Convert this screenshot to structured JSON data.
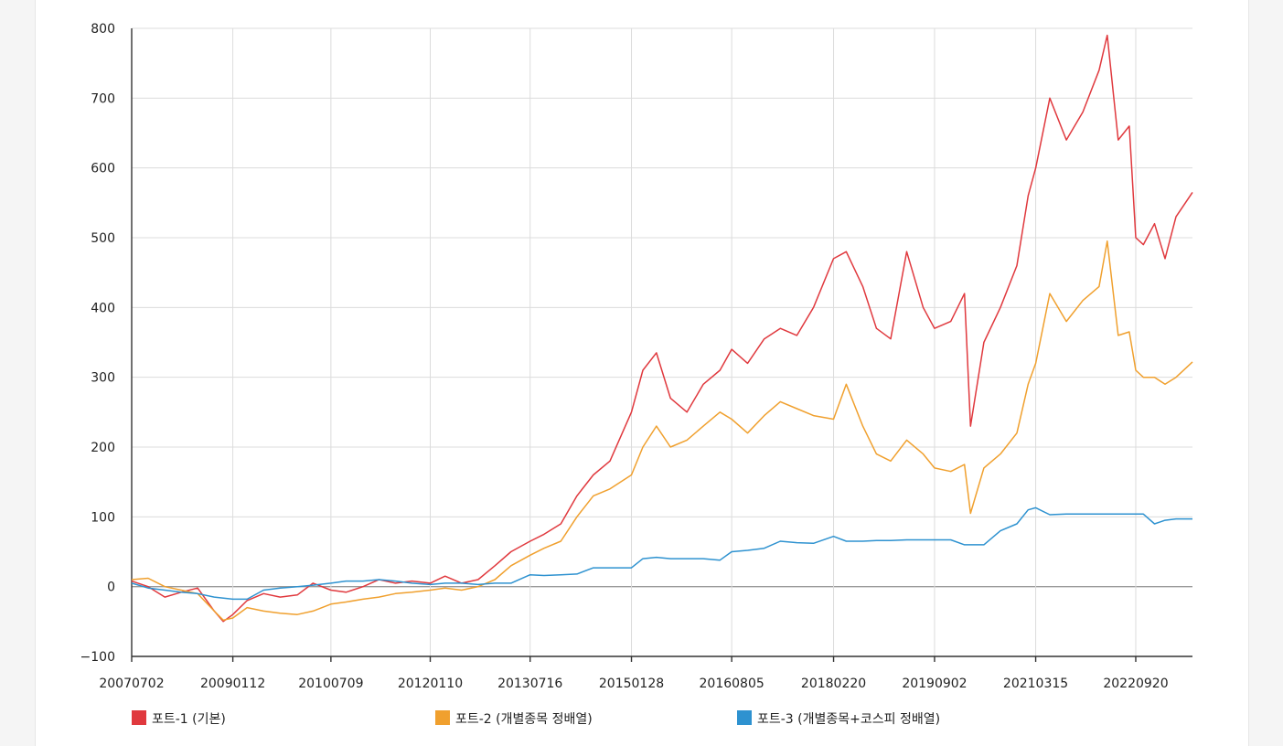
{
  "chart_data": {
    "type": "line",
    "title": "",
    "xlabel": "",
    "ylabel": "",
    "ylim": [
      -100,
      800
    ],
    "yticks": [
      -100,
      0,
      100,
      200,
      300,
      400,
      500,
      600,
      700,
      800
    ],
    "yticks_labels": [
      "−100",
      "0",
      "100",
      "200",
      "300",
      "400",
      "500",
      "600",
      "700",
      "800"
    ],
    "xlim": [
      "2007-07-02",
      "2023-07-31"
    ],
    "xticks": [
      {
        "date": "2007-07-02",
        "label": "20070702"
      },
      {
        "date": "2009-01-12",
        "label": "20090112"
      },
      {
        "date": "2010-07-09",
        "label": "20100709"
      },
      {
        "date": "2012-01-10",
        "label": "20120110"
      },
      {
        "date": "2013-07-16",
        "label": "20130716"
      },
      {
        "date": "2015-01-28",
        "label": "20150128"
      },
      {
        "date": "2016-08-05",
        "label": "20160805"
      },
      {
        "date": "2018-02-20",
        "label": "20180220"
      },
      {
        "date": "2019-09-02",
        "label": "20190902"
      },
      {
        "date": "2021-03-15",
        "label": "20210315"
      },
      {
        "date": "2022-09-20",
        "label": "20220920"
      }
    ],
    "grid": true,
    "legend_position": "bottom",
    "series": [
      {
        "name": "포트-1 (기본)",
        "color": "#e0393e",
        "points": [
          [
            "2007-07-02",
            8
          ],
          [
            "2007-10-01",
            0
          ],
          [
            "2008-01-02",
            -15
          ],
          [
            "2008-04-01",
            -8
          ],
          [
            "2008-07-01",
            -2
          ],
          [
            "2008-10-01",
            -35
          ],
          [
            "2008-11-20",
            -50
          ],
          [
            "2009-01-12",
            -40
          ],
          [
            "2009-04-01",
            -20
          ],
          [
            "2009-07-01",
            -10
          ],
          [
            "2009-10-01",
            -15
          ],
          [
            "2010-01-04",
            -12
          ],
          [
            "2010-04-01",
            5
          ],
          [
            "2010-07-09",
            -5
          ],
          [
            "2010-10-01",
            -8
          ],
          [
            "2011-01-03",
            0
          ],
          [
            "2011-04-01",
            10
          ],
          [
            "2011-07-01",
            5
          ],
          [
            "2011-10-01",
            8
          ],
          [
            "2012-01-10",
            5
          ],
          [
            "2012-04-01",
            15
          ],
          [
            "2012-07-01",
            5
          ],
          [
            "2012-10-01",
            10
          ],
          [
            "2013-01-02",
            30
          ],
          [
            "2013-04-01",
            50
          ],
          [
            "2013-07-16",
            65
          ],
          [
            "2013-10-01",
            75
          ],
          [
            "2014-01-02",
            90
          ],
          [
            "2014-04-01",
            130
          ],
          [
            "2014-07-01",
            160
          ],
          [
            "2014-10-01",
            180
          ],
          [
            "2015-01-28",
            250
          ],
          [
            "2015-04-01",
            310
          ],
          [
            "2015-06-15",
            335
          ],
          [
            "2015-09-01",
            270
          ],
          [
            "2015-12-01",
            250
          ],
          [
            "2016-03-01",
            290
          ],
          [
            "2016-06-01",
            310
          ],
          [
            "2016-08-05",
            340
          ],
          [
            "2016-11-01",
            320
          ],
          [
            "2017-02-01",
            355
          ],
          [
            "2017-05-01",
            370
          ],
          [
            "2017-08-01",
            360
          ],
          [
            "2017-11-01",
            400
          ],
          [
            "2018-02-20",
            470
          ],
          [
            "2018-05-01",
            480
          ],
          [
            "2018-08-01",
            430
          ],
          [
            "2018-10-15",
            370
          ],
          [
            "2019-01-02",
            355
          ],
          [
            "2019-04-01",
            480
          ],
          [
            "2019-07-01",
            400
          ],
          [
            "2019-09-02",
            370
          ],
          [
            "2019-12-01",
            380
          ],
          [
            "2020-02-15",
            420
          ],
          [
            "2020-03-19",
            230
          ],
          [
            "2020-06-01",
            350
          ],
          [
            "2020-09-01",
            400
          ],
          [
            "2020-12-01",
            460
          ],
          [
            "2021-02-01",
            560
          ],
          [
            "2021-03-15",
            600
          ],
          [
            "2021-06-01",
            700
          ],
          [
            "2021-09-01",
            640
          ],
          [
            "2021-12-01",
            680
          ],
          [
            "2022-03-01",
            740
          ],
          [
            "2022-04-15",
            790
          ],
          [
            "2022-06-15",
            640
          ],
          [
            "2022-08-15",
            660
          ],
          [
            "2022-09-20",
            500
          ],
          [
            "2022-11-01",
            490
          ],
          [
            "2023-01-02",
            520
          ],
          [
            "2023-03-01",
            470
          ],
          [
            "2023-05-01",
            530
          ],
          [
            "2023-07-31",
            565
          ]
        ]
      },
      {
        "name": "포트-2 (개별종목 정배열)",
        "color": "#f0a02e",
        "points": [
          [
            "2007-07-02",
            10
          ],
          [
            "2007-10-01",
            12
          ],
          [
            "2008-01-02",
            0
          ],
          [
            "2008-04-01",
            -5
          ],
          [
            "2008-07-01",
            -10
          ],
          [
            "2008-10-01",
            -35
          ],
          [
            "2008-11-20",
            -48
          ],
          [
            "2009-01-12",
            -45
          ],
          [
            "2009-04-01",
            -30
          ],
          [
            "2009-07-01",
            -35
          ],
          [
            "2009-10-01",
            -38
          ],
          [
            "2010-01-04",
            -40
          ],
          [
            "2010-04-01",
            -35
          ],
          [
            "2010-07-09",
            -25
          ],
          [
            "2010-10-01",
            -22
          ],
          [
            "2011-01-03",
            -18
          ],
          [
            "2011-04-01",
            -15
          ],
          [
            "2011-07-01",
            -10
          ],
          [
            "2011-10-01",
            -8
          ],
          [
            "2012-01-10",
            -5
          ],
          [
            "2012-04-01",
            -2
          ],
          [
            "2012-07-01",
            -5
          ],
          [
            "2012-10-01",
            0
          ],
          [
            "2013-01-02",
            10
          ],
          [
            "2013-04-01",
            30
          ],
          [
            "2013-07-16",
            45
          ],
          [
            "2013-10-01",
            55
          ],
          [
            "2014-01-02",
            65
          ],
          [
            "2014-04-01",
            100
          ],
          [
            "2014-07-01",
            130
          ],
          [
            "2014-10-01",
            140
          ],
          [
            "2015-01-28",
            160
          ],
          [
            "2015-04-01",
            200
          ],
          [
            "2015-06-15",
            230
          ],
          [
            "2015-09-01",
            200
          ],
          [
            "2015-12-01",
            210
          ],
          [
            "2016-03-01",
            230
          ],
          [
            "2016-06-01",
            250
          ],
          [
            "2016-08-05",
            240
          ],
          [
            "2016-11-01",
            220
          ],
          [
            "2017-02-01",
            245
          ],
          [
            "2017-05-01",
            265
          ],
          [
            "2017-08-01",
            255
          ],
          [
            "2017-11-01",
            245
          ],
          [
            "2018-02-20",
            240
          ],
          [
            "2018-05-01",
            290
          ],
          [
            "2018-08-01",
            230
          ],
          [
            "2018-10-15",
            190
          ],
          [
            "2019-01-02",
            180
          ],
          [
            "2019-04-01",
            210
          ],
          [
            "2019-07-01",
            190
          ],
          [
            "2019-09-02",
            170
          ],
          [
            "2019-12-01",
            165
          ],
          [
            "2020-02-15",
            175
          ],
          [
            "2020-03-19",
            105
          ],
          [
            "2020-06-01",
            170
          ],
          [
            "2020-09-01",
            190
          ],
          [
            "2020-12-01",
            220
          ],
          [
            "2021-02-01",
            290
          ],
          [
            "2021-03-15",
            320
          ],
          [
            "2021-06-01",
            420
          ],
          [
            "2021-09-01",
            380
          ],
          [
            "2021-12-01",
            410
          ],
          [
            "2022-03-01",
            430
          ],
          [
            "2022-04-15",
            495
          ],
          [
            "2022-06-15",
            360
          ],
          [
            "2022-08-15",
            365
          ],
          [
            "2022-09-20",
            310
          ],
          [
            "2022-11-01",
            300
          ],
          [
            "2023-01-02",
            300
          ],
          [
            "2023-03-01",
            290
          ],
          [
            "2023-05-01",
            300
          ],
          [
            "2023-07-31",
            322
          ]
        ]
      },
      {
        "name": "포트-3 (개별종목+코스피 정배열)",
        "color": "#2e92d0",
        "points": [
          [
            "2007-07-02",
            5
          ],
          [
            "2007-10-01",
            -2
          ],
          [
            "2008-01-02",
            -5
          ],
          [
            "2008-04-01",
            -8
          ],
          [
            "2008-07-01",
            -10
          ],
          [
            "2008-10-01",
            -15
          ],
          [
            "2009-01-12",
            -18
          ],
          [
            "2009-04-01",
            -18
          ],
          [
            "2009-07-01",
            -5
          ],
          [
            "2009-10-01",
            -2
          ],
          [
            "2010-01-04",
            0
          ],
          [
            "2010-04-01",
            2
          ],
          [
            "2010-07-09",
            5
          ],
          [
            "2010-10-01",
            8
          ],
          [
            "2011-01-03",
            8
          ],
          [
            "2011-04-01",
            10
          ],
          [
            "2011-07-01",
            8
          ],
          [
            "2011-10-01",
            5
          ],
          [
            "2012-01-10",
            3
          ],
          [
            "2012-04-01",
            5
          ],
          [
            "2012-07-01",
            5
          ],
          [
            "2012-10-01",
            3
          ],
          [
            "2013-01-02",
            5
          ],
          [
            "2013-04-01",
            5
          ],
          [
            "2013-07-16",
            17
          ],
          [
            "2013-10-01",
            16
          ],
          [
            "2014-01-02",
            17
          ],
          [
            "2014-04-01",
            18
          ],
          [
            "2014-07-01",
            27
          ],
          [
            "2014-10-01",
            27
          ],
          [
            "2015-01-28",
            27
          ],
          [
            "2015-04-01",
            40
          ],
          [
            "2015-06-15",
            42
          ],
          [
            "2015-09-01",
            40
          ],
          [
            "2015-12-01",
            40
          ],
          [
            "2016-03-01",
            40
          ],
          [
            "2016-06-01",
            38
          ],
          [
            "2016-08-05",
            50
          ],
          [
            "2016-11-01",
            52
          ],
          [
            "2017-02-01",
            55
          ],
          [
            "2017-05-01",
            65
          ],
          [
            "2017-08-01",
            63
          ],
          [
            "2017-11-01",
            62
          ],
          [
            "2018-02-20",
            72
          ],
          [
            "2018-05-01",
            65
          ],
          [
            "2018-08-01",
            65
          ],
          [
            "2018-10-15",
            66
          ],
          [
            "2019-01-02",
            66
          ],
          [
            "2019-04-01",
            67
          ],
          [
            "2019-07-01",
            67
          ],
          [
            "2019-09-02",
            67
          ],
          [
            "2019-12-01",
            67
          ],
          [
            "2020-02-15",
            60
          ],
          [
            "2020-03-19",
            60
          ],
          [
            "2020-06-01",
            60
          ],
          [
            "2020-09-01",
            80
          ],
          [
            "2020-12-01",
            90
          ],
          [
            "2021-02-01",
            110
          ],
          [
            "2021-03-15",
            113
          ],
          [
            "2021-06-01",
            103
          ],
          [
            "2021-09-01",
            104
          ],
          [
            "2021-12-01",
            104
          ],
          [
            "2022-03-01",
            104
          ],
          [
            "2022-06-15",
            104
          ],
          [
            "2022-09-20",
            104
          ],
          [
            "2022-11-01",
            104
          ],
          [
            "2023-01-02",
            90
          ],
          [
            "2023-03-01",
            95
          ],
          [
            "2023-05-01",
            97
          ],
          [
            "2023-07-31",
            97
          ]
        ]
      }
    ]
  }
}
